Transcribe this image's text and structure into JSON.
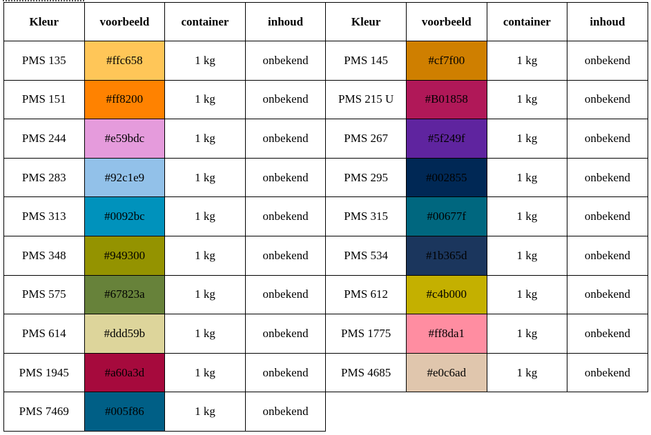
{
  "headers": [
    "Kleur",
    "voorbeeld",
    "container",
    "inhoud",
    "Kleur",
    "voorbeeld",
    "container",
    "inhoud"
  ],
  "left": [
    {
      "name": "PMS 135",
      "hex": "#ffc658",
      "container": "1 kg",
      "inhoud": "onbekend"
    },
    {
      "name": "PMS 151",
      "hex": "#ff8200",
      "container": "1 kg",
      "inhoud": "onbekend"
    },
    {
      "name": "PMS 244",
      "hex": "#e59bdc",
      "container": "1 kg",
      "inhoud": "onbekend"
    },
    {
      "name": "PMS 283",
      "hex": "#92c1e9",
      "container": "1 kg",
      "inhoud": "onbekend"
    },
    {
      "name": "PMS 313",
      "hex": "#0092bc",
      "container": "1 kg",
      "inhoud": "onbekend"
    },
    {
      "name": "PMS 348",
      "hex": "#949300",
      "container": "1 kg",
      "inhoud": "onbekend"
    },
    {
      "name": "PMS 575",
      "hex": "#67823a",
      "container": "1 kg",
      "inhoud": "onbekend"
    },
    {
      "name": "PMS 614",
      "hex": "#ddd59b",
      "container": "1 kg",
      "inhoud": "onbekend"
    },
    {
      "name": "PMS 1945",
      "hex": "#a60a3d",
      "container": "1 kg",
      "inhoud": "onbekend"
    },
    {
      "name": "PMS 7469",
      "hex": "#005f86",
      "container": "1 kg",
      "inhoud": "onbekend"
    }
  ],
  "right": [
    {
      "name": "PMS 145",
      "hex": "#cf7f00",
      "container": "1 kg",
      "inhoud": "onbekend"
    },
    {
      "name": "PMS 215 U",
      "hex": "#B01858",
      "container": "1 kg",
      "inhoud": "onbekend"
    },
    {
      "name": "PMS 267",
      "hex": "#5f249f",
      "container": "1 kg",
      "inhoud": "onbekend"
    },
    {
      "name": "PMS 295",
      "hex": "#002855",
      "container": "1 kg",
      "inhoud": "onbekend"
    },
    {
      "name": "PMS 315",
      "hex": "#00677f",
      "container": "1 kg",
      "inhoud": "onbekend"
    },
    {
      "name": "PMS 534",
      "hex": "#1b365d",
      "container": "1 kg",
      "inhoud": "onbekend"
    },
    {
      "name": "PMS 612",
      "hex": "#c4b000",
      "container": "1 kg",
      "inhoud": "onbekend"
    },
    {
      "name": "PMS 1775",
      "hex": "#ff8da1",
      "container": "1 kg",
      "inhoud": "onbekend"
    },
    {
      "name": "PMS 4685",
      "hex": "#e0c6ad",
      "container": "1 kg",
      "inhoud": "onbekend"
    }
  ]
}
